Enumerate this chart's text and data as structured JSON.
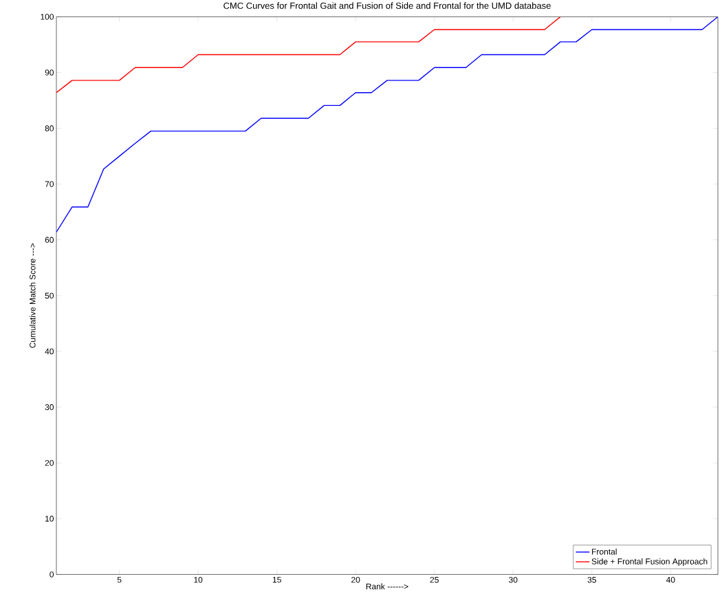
{
  "chart_data": {
    "type": "line",
    "title": "CMC Curves for Frontal Gait and Fusion of Side and Frontal for the UMD database",
    "xlabel": "Rank ------>",
    "ylabel": "Cumulative Match Score --->",
    "xlim": [
      1,
      43
    ],
    "xticks": [
      5,
      10,
      15,
      20,
      25,
      30,
      35,
      40
    ],
    "ylim": [
      0,
      100
    ],
    "yticks": [
      0,
      10,
      20,
      30,
      40,
      50,
      60,
      70,
      80,
      90,
      100
    ],
    "grid": false,
    "legend": "bottom right",
    "marker": "none",
    "line_style": "solid",
    "series": [
      {
        "name": "Frontal",
        "color": "#0000ff",
        "x": [
          1,
          2,
          3,
          4,
          5,
          6,
          7,
          8,
          9,
          10,
          11,
          12,
          13,
          14,
          15,
          16,
          17,
          18,
          19,
          20,
          21,
          22,
          23,
          24,
          25,
          26,
          27,
          28,
          29,
          30,
          31,
          32,
          33,
          34,
          35,
          36,
          37,
          38,
          39,
          40,
          41,
          42,
          43
        ],
        "values": [
          61.4,
          65.9,
          65.9,
          72.7,
          75.0,
          77.3,
          79.5,
          79.5,
          79.5,
          79.5,
          79.5,
          79.5,
          79.5,
          81.8,
          81.8,
          81.8,
          81.8,
          84.1,
          84.1,
          86.4,
          86.4,
          88.6,
          88.6,
          88.6,
          90.9,
          90.9,
          90.9,
          93.2,
          93.2,
          93.2,
          93.2,
          93.2,
          95.5,
          95.5,
          97.7,
          97.7,
          97.7,
          97.7,
          97.7,
          97.7,
          97.7,
          97.7,
          100
        ]
      },
      {
        "name": "Side + Frontal Fusion Approach",
        "color": "#ff0000",
        "x": [
          1,
          2,
          3,
          4,
          5,
          6,
          7,
          8,
          9,
          10,
          11,
          12,
          13,
          14,
          15,
          16,
          17,
          18,
          19,
          20,
          21,
          22,
          23,
          24,
          25,
          26,
          27,
          28,
          29,
          30,
          31,
          32,
          33
        ],
        "values": [
          86.4,
          88.6,
          88.6,
          88.6,
          88.6,
          90.9,
          90.9,
          90.9,
          90.9,
          93.2,
          93.2,
          93.2,
          93.2,
          93.2,
          93.2,
          93.2,
          93.2,
          93.2,
          93.2,
          95.5,
          95.5,
          95.5,
          95.5,
          95.5,
          97.7,
          97.7,
          97.7,
          97.7,
          97.7,
          97.7,
          97.7,
          97.7,
          100
        ]
      }
    ]
  }
}
